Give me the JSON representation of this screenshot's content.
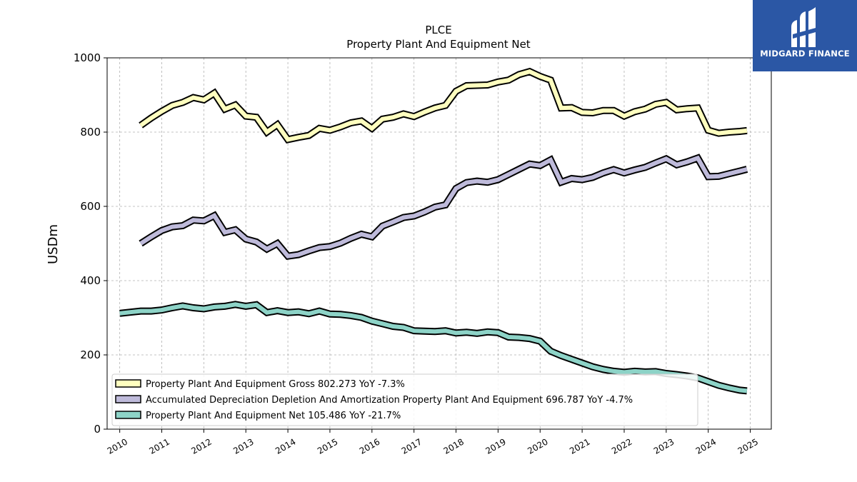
{
  "chart_data": {
    "type": "line",
    "ticker": "PLCE",
    "title": "Property Plant And Equipment Net",
    "ylabel": "USDm",
    "xlabel": "",
    "ylim": [
      0,
      1000
    ],
    "xlim": [
      2009.7,
      2025.5
    ],
    "y_ticks": [
      0,
      200,
      400,
      600,
      800,
      1000
    ],
    "x_ticks": [
      2010,
      2011,
      2012,
      2013,
      2014,
      2015,
      2016,
      2017,
      2018,
      2019,
      2020,
      2021,
      2022,
      2023,
      2024,
      2025
    ],
    "grid": true,
    "legend_placement": "lower-left",
    "series": [
      {
        "name": "Property Plant And Equipment Gross",
        "legend": "Property Plant And Equipment Gross  802.273 YoY -7.3%",
        "color": "#ffffbf",
        "x": [
          2010.5,
          2010.75,
          2011.0,
          2011.25,
          2011.5,
          2011.75,
          2012.0,
          2012.25,
          2012.5,
          2012.75,
          2013.0,
          2013.25,
          2013.5,
          2013.75,
          2014.0,
          2014.25,
          2014.5,
          2014.75,
          2015.0,
          2015.25,
          2015.5,
          2015.75,
          2016.0,
          2016.25,
          2016.5,
          2016.75,
          2017.0,
          2017.25,
          2017.5,
          2017.75,
          2018.0,
          2018.25,
          2018.5,
          2018.75,
          2019.0,
          2019.25,
          2019.5,
          2019.75,
          2020.0,
          2020.25,
          2020.5,
          2020.75,
          2021.0,
          2021.25,
          2021.5,
          2021.75,
          2022.0,
          2022.25,
          2022.5,
          2022.75,
          2023.0,
          2023.25,
          2023.5,
          2023.75,
          2024.0,
          2024.25,
          2024.5,
          2024.75,
          2024.92
        ],
        "values": [
          818,
          838,
          856,
          872,
          880,
          893,
          887,
          905,
          862,
          873,
          843,
          840,
          800,
          820,
          780,
          786,
          791,
          810,
          805,
          814,
          825,
          830,
          810,
          835,
          840,
          849,
          842,
          854,
          865,
          872,
          910,
          925,
          926,
          927,
          935,
          940,
          955,
          963,
          950,
          940,
          865,
          866,
          853,
          852,
          858,
          858,
          843,
          855,
          862,
          875,
          880,
          860,
          863,
          865,
          805,
          797,
          800,
          802,
          804
        ]
      },
      {
        "name": "Accumulated Depreciation Depletion And Amortization Property Plant And Equipment",
        "legend": "Accumulated Depreciation Depletion And Amortization Property Plant And Equipment  696.787 YoY -4.7%",
        "color": "#bebada",
        "x": [
          2010.5,
          2010.75,
          2011.0,
          2011.25,
          2011.5,
          2011.75,
          2012.0,
          2012.25,
          2012.5,
          2012.75,
          2013.0,
          2013.25,
          2013.5,
          2013.75,
          2014.0,
          2014.25,
          2014.5,
          2014.75,
          2015.0,
          2015.25,
          2015.5,
          2015.75,
          2016.0,
          2016.25,
          2016.5,
          2016.75,
          2017.0,
          2017.25,
          2017.5,
          2017.75,
          2018.0,
          2018.25,
          2018.5,
          2018.75,
          2019.0,
          2019.25,
          2019.5,
          2019.75,
          2020.0,
          2020.25,
          2020.5,
          2020.75,
          2021.0,
          2021.25,
          2021.5,
          2021.75,
          2022.0,
          2022.25,
          2022.5,
          2022.75,
          2023.0,
          2023.25,
          2023.5,
          2023.75,
          2024.0,
          2024.25,
          2024.5,
          2024.75,
          2024.92
        ],
        "values": [
          500,
          518,
          535,
          545,
          548,
          563,
          561,
          575,
          530,
          537,
          512,
          504,
          485,
          500,
          466,
          470,
          480,
          489,
          492,
          501,
          514,
          525,
          518,
          547,
          558,
          570,
          574,
          585,
          598,
          604,
          648,
          664,
          668,
          665,
          672,
          686,
          700,
          714,
          710,
          725,
          665,
          675,
          672,
          678,
          690,
          699,
          690,
          698,
          705,
          717,
          728,
          712,
          720,
          730,
          680,
          681,
          688,
          695,
          700
        ]
      },
      {
        "name": "Property Plant And Equipment Net",
        "legend": "Property Plant And Equipment Net  105.486 YoY -21.7%",
        "color": "#8dd3c7",
        "x": [
          2010.0,
          2010.25,
          2010.5,
          2010.75,
          2011.0,
          2011.25,
          2011.5,
          2011.75,
          2012.0,
          2012.25,
          2012.5,
          2012.75,
          2013.0,
          2013.25,
          2013.5,
          2013.75,
          2014.0,
          2014.25,
          2014.5,
          2014.75,
          2015.0,
          2015.25,
          2015.5,
          2015.75,
          2016.0,
          2016.25,
          2016.5,
          2016.75,
          2017.0,
          2017.25,
          2017.5,
          2017.75,
          2018.0,
          2018.25,
          2018.5,
          2018.75,
          2019.0,
          2019.25,
          2019.5,
          2019.75,
          2020.0,
          2020.25,
          2020.5,
          2020.75,
          2021.0,
          2021.25,
          2021.5,
          2021.75,
          2022.0,
          2022.25,
          2022.5,
          2022.75,
          2023.0,
          2023.25,
          2023.5,
          2023.75,
          2024.0,
          2024.25,
          2024.5,
          2024.75,
          2024.92
        ],
        "values": [
          312,
          315,
          318,
          318,
          321,
          327,
          332,
          327,
          324,
          329,
          331,
          336,
          331,
          335,
          314,
          319,
          314,
          316,
          311,
          318,
          310,
          309,
          306,
          301,
          291,
          284,
          277,
          274,
          265,
          264,
          263,
          265,
          259,
          261,
          258,
          262,
          260,
          248,
          247,
          244,
          237,
          210,
          198,
          188,
          178,
          168,
          161,
          156,
          153,
          156,
          154,
          155,
          150,
          147,
          143,
          138,
          128,
          118,
          111,
          105,
          103
        ]
      }
    ]
  },
  "logo": {
    "text": "MIDGARD FINANCE",
    "icon": "midgard-logo-icon"
  }
}
